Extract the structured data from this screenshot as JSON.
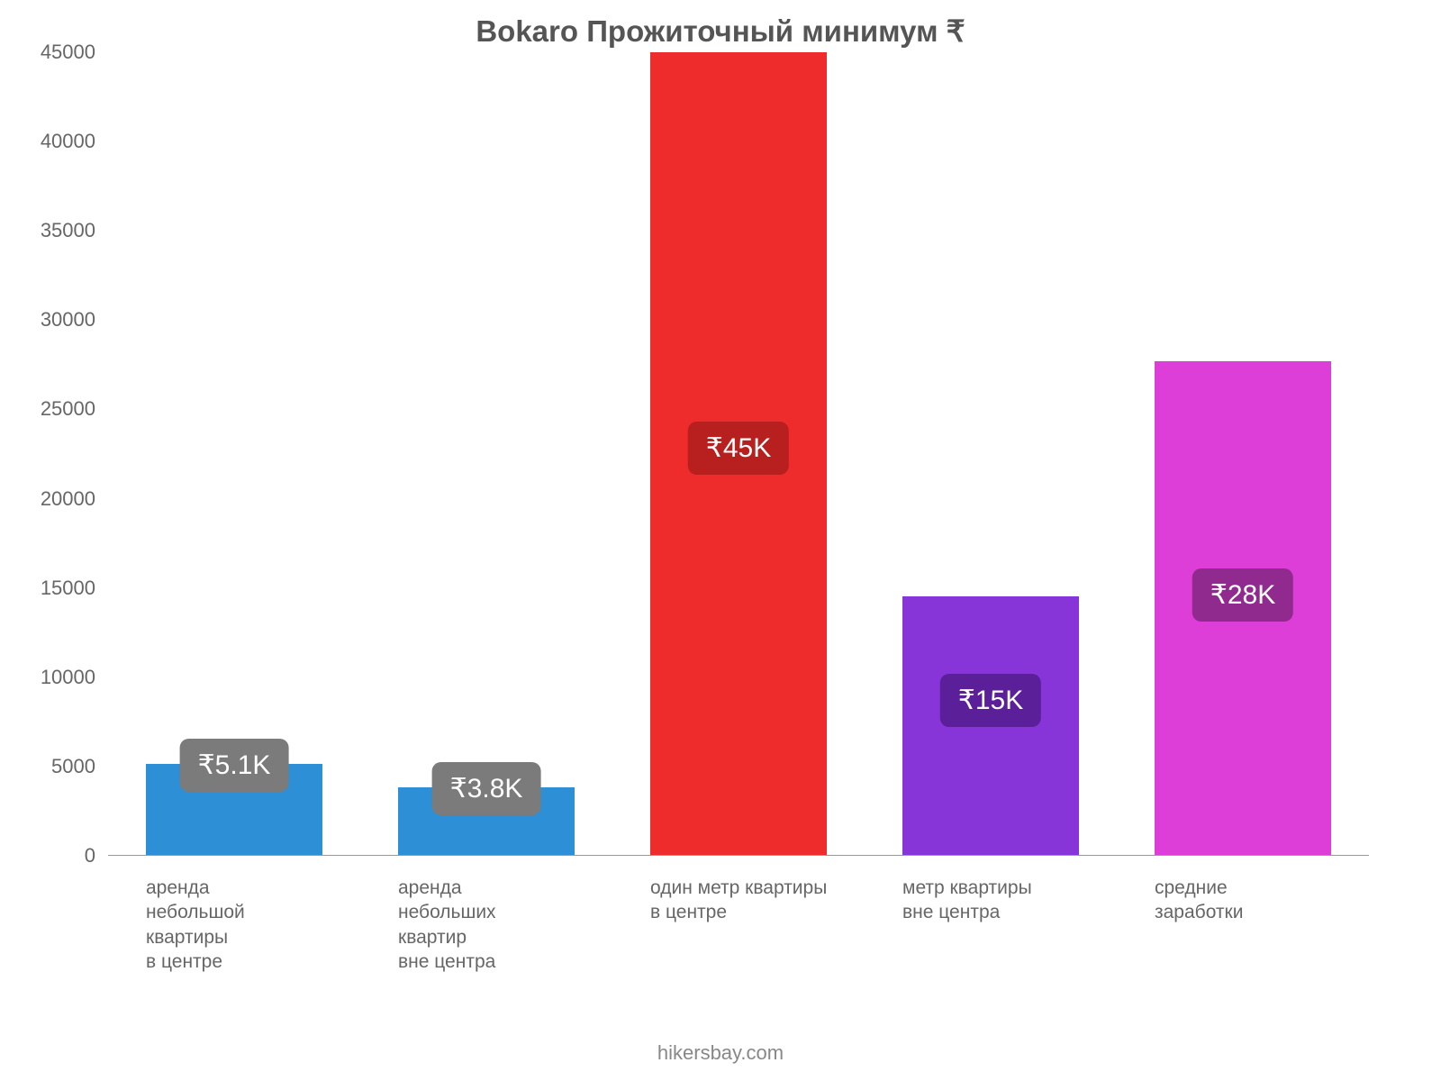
{
  "chart": {
    "type": "bar",
    "title": "Bokaro Прожиточный минимум ₹",
    "footer": "hikersbay.com",
    "background_color": "#ffffff",
    "title_color": "#555555",
    "axis_text_color": "#666666",
    "yaxis": {
      "min": 0,
      "max": 45000,
      "step": 5000,
      "ticks": [
        0,
        5000,
        10000,
        15000,
        20000,
        25000,
        30000,
        35000,
        40000,
        45000
      ]
    },
    "bars": [
      {
        "id": "rent-small-center",
        "label_lines": [
          "аренда",
          "небольшой",
          "квартиры",
          "в центре"
        ],
        "value": 5100,
        "color": "#2d8fd5",
        "badge_text": "₹5.1K",
        "badge_bg": "#7b7b7b",
        "badge_pos": "top"
      },
      {
        "id": "rent-small-outside",
        "label_lines": [
          "аренда",
          "небольших",
          "квартир",
          "вне центра"
        ],
        "value": 3800,
        "color": "#2d8fd5",
        "badge_text": "₹3.8K",
        "badge_bg": "#7b7b7b",
        "badge_pos": "top"
      },
      {
        "id": "meter-center",
        "label_lines": [
          "один метр квартиры",
          "в центре"
        ],
        "value": 45000,
        "color": "#ee2c2c",
        "badge_text": "₹45K",
        "badge_bg": "#b81f1f",
        "badge_pos": "inside",
        "badge_top_pct": 46
      },
      {
        "id": "meter-outside",
        "label_lines": [
          "метр квартиры",
          "вне центра"
        ],
        "value": 14500,
        "color": "#8734d9",
        "badge_text": "₹15K",
        "badge_bg": "#5a1f99",
        "badge_pos": "inside",
        "badge_top_pct": 30
      },
      {
        "id": "avg-earnings",
        "label_lines": [
          "средние",
          "заработки"
        ],
        "value": 27700,
        "color": "#dd3ed8",
        "badge_text": "₹28K",
        "badge_bg": "#912a8e",
        "badge_pos": "inside",
        "badge_top_pct": 42
      }
    ],
    "bar_width_pct": 14,
    "bar_gap_pct": 6
  }
}
